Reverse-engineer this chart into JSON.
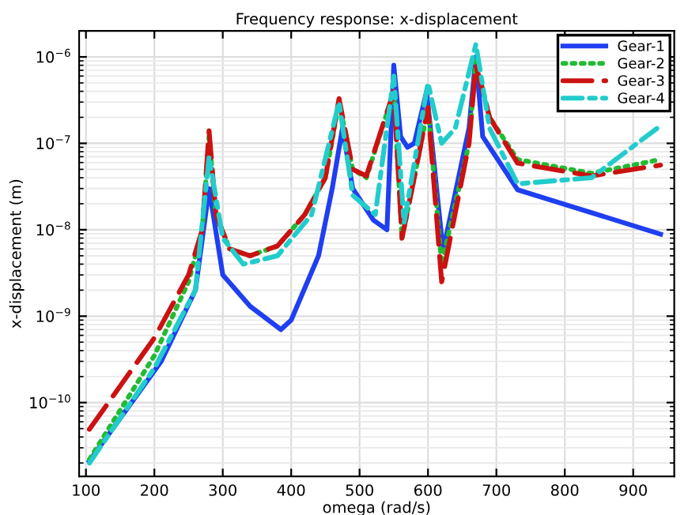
{
  "chart_data": {
    "type": "line",
    "title": "Frequency response: x-displacement",
    "xlabel": "omega (rad/s)",
    "ylabel": "x-displacement (m)",
    "log": "y",
    "grid": true,
    "legend": "top right",
    "xlim": [
      90,
      960
    ],
    "ylim": [
      1.4e-11,
      2e-06
    ],
    "xticks": [
      100,
      200,
      300,
      400,
      500,
      600,
      700,
      800,
      900
    ],
    "yticks": [
      {
        "value": 1e-10,
        "label": "10$^{−10}$"
      },
      {
        "value": 1e-09,
        "label": "10$^{−9}$"
      },
      {
        "value": 1e-08,
        "label": "10$^{−8}$"
      },
      {
        "value": 1e-07,
        "label": "10$^{−7}$"
      },
      {
        "value": 1e-06,
        "label": "10$^{−6}$"
      }
    ],
    "series": [
      {
        "name": "Gear-1",
        "color": "#1f3ff0",
        "line_style": "solid",
        "x": [
          105,
          210,
          260,
          280,
          300,
          340,
          385,
          400,
          440,
          460,
          475,
          490,
          520,
          540,
          550,
          560,
          570,
          580,
          598,
          622,
          660,
          670,
          680,
          731,
          940
        ],
        "values": [
          2.1e-11,
          3e-10,
          2e-09,
          3e-08,
          3e-09,
          1.3e-09,
          7e-10,
          9e-10,
          5e-09,
          3e-08,
          1.5e-07,
          3e-08,
          1.3e-08,
          1e-08,
          8e-07,
          1.2e-07,
          9e-08,
          1e-07,
          4e-07,
          5.7e-09,
          1.5e-07,
          1e-06,
          1.2e-07,
          2.9e-08,
          8.9e-09
        ]
      },
      {
        "name": "Gear-2",
        "color": "#22bb33",
        "line_style": "dotted",
        "x": [
          105,
          200,
          250,
          270,
          280,
          290,
          310,
          340,
          380,
          420,
          450,
          470,
          490,
          510,
          550,
          562,
          580,
          600,
          620,
          660,
          670,
          690,
          731,
          839,
          940
        ],
        "values": [
          2.2e-11,
          3.5e-10,
          2.5e-09,
          1e-08,
          1.2e-07,
          1.5e-08,
          6e-09,
          5e-09,
          6.5e-09,
          1.5e-08,
          4e-08,
          3e-07,
          5e-08,
          4e-08,
          4e-07,
          8e-09,
          4e-08,
          2.6e-07,
          4e-09,
          1e-07,
          9e-07,
          2e-07,
          6.5e-08,
          4.5e-08,
          6.5e-08
        ]
      },
      {
        "name": "Gear-3",
        "color": "#cc1111",
        "line_style": "dashed",
        "x": [
          105,
          200,
          250,
          270,
          280,
          290,
          310,
          340,
          380,
          420,
          450,
          470,
          490,
          510,
          550,
          562,
          580,
          600,
          620,
          660,
          670,
          690,
          731,
          839,
          940
        ],
        "values": [
          4.9e-11,
          5.6e-10,
          3e-09,
          1e-08,
          1.4e-07,
          1.5e-08,
          6e-09,
          5e-09,
          6.5e-09,
          1.5e-08,
          4e-08,
          3.3e-07,
          5e-08,
          4.2e-08,
          4e-07,
          8e-09,
          4e-08,
          2.6e-07,
          2.5e-09,
          1e-07,
          8e-07,
          2e-07,
          5.9e-08,
          4.2e-08,
          5.6e-08
        ]
      },
      {
        "name": "Gear-4",
        "color": "#22cccc",
        "line_style": "dashdot",
        "x": [
          105,
          200,
          260,
          280,
          300,
          330,
          380,
          430,
          470,
          490,
          523,
          550,
          565,
          600,
          620,
          640,
          670,
          690,
          731,
          839,
          940
        ],
        "values": [
          2e-11,
          2.5e-10,
          2e-09,
          7e-08,
          8e-09,
          4e-09,
          5e-09,
          1.5e-08,
          3e-07,
          2.5e-08,
          1.5e-08,
          6e-07,
          1.2e-08,
          5e-07,
          1e-07,
          1.5e-07,
          1.4e-06,
          1.5e-07,
          3.4e-08,
          4e-08,
          1.6e-07
        ]
      }
    ]
  }
}
